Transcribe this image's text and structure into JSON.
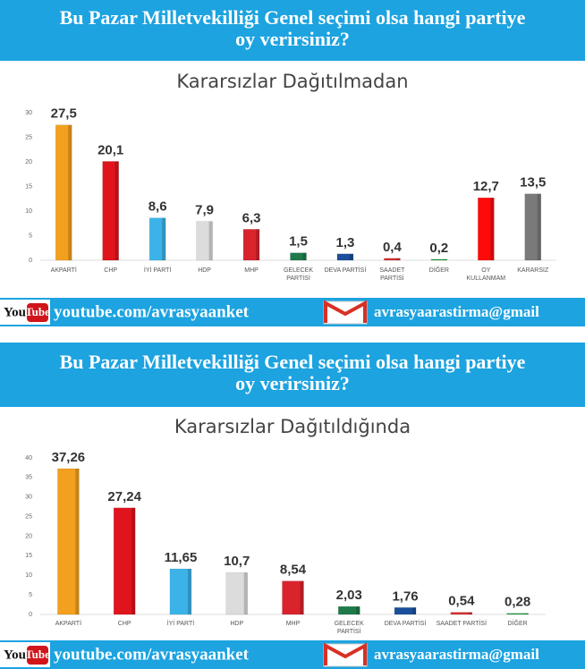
{
  "chart_data": [
    {
      "type": "bar",
      "title": "Bu Pazar Milletvekilliği Genel seçimi olsa hangi partiye oy verirsiniz?",
      "subtitle": "Kararsızlar Dağıtılmadan",
      "categories": [
        "AKPARTİ",
        "CHP",
        "İYİ PARTİ",
        "HDP",
        "MHP",
        "GELECEK PARTİSİ",
        "DEVA PARTİSİ",
        "SAADET PARTİSİ",
        "DİĞER",
        "OY KULLANMAM",
        "KARARSIZ"
      ],
      "values": [
        27.5,
        20.1,
        8.6,
        7.9,
        6.3,
        1.5,
        1.3,
        0.4,
        0.2,
        12.7,
        13.5
      ],
      "value_labels": [
        "27,5",
        "20,1",
        "8,6",
        "7,9",
        "6,3",
        "1,5",
        "1,3",
        "0,4",
        "0,2",
        "12,7",
        "13,5"
      ],
      "colors": [
        "#f2a01e",
        "#e0141c",
        "#3cb3e8",
        "#dcdcdc",
        "#d9242c",
        "#1e7a4a",
        "#1a4f9c",
        "#d62d2d",
        "#1b9b3a",
        "#ff0a0a",
        "#7a7a7a"
      ],
      "ylim": [
        0,
        30
      ],
      "yticks": [
        0,
        5,
        10,
        15,
        20,
        25,
        30
      ]
    },
    {
      "type": "bar",
      "title": "Bu Pazar Milletvekilliği Genel seçimi olsa hangi partiye oy verirsiniz?",
      "subtitle": "Kararsızlar Dağıtıldığında",
      "categories": [
        "AKPARTİ",
        "CHP",
        "İYİ PARTİ",
        "HDP",
        "MHP",
        "GELECEK PARTİSİ",
        "DEVA PARTİSİ",
        "SAADET PARTİSİ",
        "DİĞER"
      ],
      "values": [
        37.26,
        27.24,
        11.65,
        10.7,
        8.54,
        2.03,
        1.76,
        0.54,
        0.28
      ],
      "value_labels": [
        "37,26",
        "27,24",
        "11,65",
        "10,7",
        "8,54",
        "2,03",
        "1,76",
        "0,54",
        "0,28"
      ],
      "colors": [
        "#f2a01e",
        "#e0141c",
        "#3cb3e8",
        "#dcdcdc",
        "#d9242c",
        "#1e7a4a",
        "#1a4f9c",
        "#d62d2d",
        "#1b9b3a"
      ],
      "ylim": [
        0,
        40
      ],
      "yticks": [
        0,
        5,
        10,
        15,
        20,
        25,
        30,
        35,
        40
      ]
    }
  ],
  "footers": [
    {
      "logo_you": "You",
      "logo_tube": "Tube",
      "url": "youtube.com/avrasyaanket",
      "email": "avrasyaarastirma@gmail"
    },
    {
      "logo_you": "You",
      "logo_tube": "Tube",
      "url": "youtube.com/avrasyaanket",
      "email": "avrasyaarastirma@gmail"
    }
  ]
}
